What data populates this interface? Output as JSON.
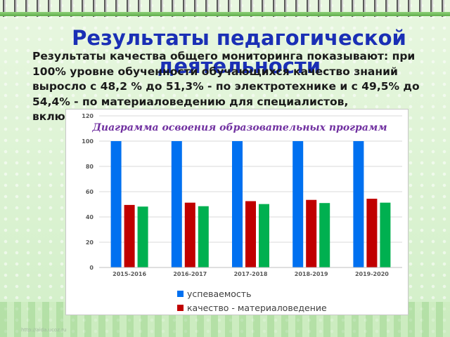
{
  "slide": {
    "title": "Результаты педагогической деятельности",
    "body": "Результаты качества общего мониторинга показывают: при 100% уровне обученности обучающихся качество знаний выросло с 48,2 %  до 51,3%  -  по электротехнике и с 49,5% до 54,4%  -  по материаловедению для специалистов, включенных в работу",
    "watermark": "http://aida.ucoz.ru"
  },
  "chart_data": {
    "type": "bar",
    "title": "Диаграмма освоения образовательных программ",
    "categories": [
      "2015-2016",
      "2016-2017",
      "2017-2018",
      "2018-2019",
      "2019-2020"
    ],
    "series": [
      {
        "name": "успеваемость",
        "color": "#0070f0",
        "values": [
          100,
          100,
          100,
          100,
          100
        ]
      },
      {
        "name": "качество - материаловедение",
        "color": "#c00000",
        "values": [
          49.5,
          51.3,
          52.5,
          53.5,
          54.4
        ]
      },
      {
        "name": "",
        "color": "#00b050",
        "values": [
          48.2,
          48.5,
          50.2,
          51.0,
          51.3
        ]
      }
    ],
    "ylim": [
      0,
      120
    ],
    "yticks": [
      "0",
      "20",
      "40",
      "60",
      "80",
      "100",
      "120"
    ],
    "grid": true,
    "legend": "bottom",
    "xlabel": "",
    "ylabel": ""
  }
}
